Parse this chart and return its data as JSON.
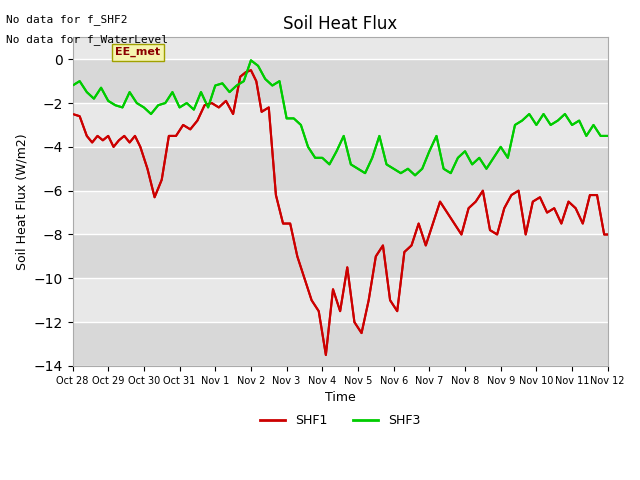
{
  "title": "Soil Heat Flux",
  "ylabel": "Soil Heat Flux (W/m2)",
  "xlabel": "Time",
  "top_text": [
    "No data for f_SHF2",
    "No data for f_WaterLevel"
  ],
  "annotation_box": "EE_met",
  "ylim": [
    -14,
    1
  ],
  "yticks": [
    0,
    -2,
    -4,
    -6,
    -8,
    -10,
    -12,
    -14
  ],
  "xlim": [
    0,
    15
  ],
  "xtick_labels": [
    "Oct 28",
    "Oct 29",
    "Oct 30",
    "Oct 31",
    "Nov 1",
    "Nov 2",
    "Nov 3",
    "Nov 4",
    "Nov 5",
    "Nov 6",
    "Nov 7",
    "Nov 8",
    "Nov 9",
    "Nov 10",
    "Nov 11",
    "Nov 12"
  ],
  "xtick_positions": [
    0,
    1,
    2,
    3,
    4,
    5,
    6,
    7,
    8,
    9,
    10,
    11,
    12,
    13,
    14,
    15
  ],
  "legend_labels": [
    "SHF1",
    "SHF3"
  ],
  "legend_colors": [
    "#cc0000",
    "#00cc00"
  ],
  "background_color": "#ffffff",
  "plot_bg_color": "#e8e8e8",
  "grid_color": "#ffffff",
  "shf1_x": [
    0,
    0.2,
    0.4,
    0.55,
    0.7,
    0.85,
    1.0,
    1.15,
    1.3,
    1.45,
    1.6,
    1.75,
    1.9,
    2.1,
    2.3,
    2.5,
    2.7,
    2.9,
    3.1,
    3.3,
    3.5,
    3.7,
    3.9,
    4.1,
    4.3,
    4.5,
    4.7,
    4.85,
    5.0,
    5.15,
    5.3,
    5.5,
    5.7,
    5.9,
    6.1,
    6.3,
    6.5,
    6.7,
    6.9,
    7.1,
    7.3,
    7.5,
    7.7,
    7.9,
    8.1,
    8.3,
    8.5,
    8.7,
    8.9,
    9.1,
    9.3,
    9.5,
    9.7,
    9.9,
    10.1,
    10.3,
    10.5,
    10.7,
    10.9,
    11.1,
    11.3,
    11.5,
    11.7,
    11.9,
    12.1,
    12.3,
    12.5,
    12.7,
    12.9,
    13.1,
    13.3,
    13.5,
    13.7,
    13.9,
    14.1,
    14.3,
    14.5,
    14.7,
    14.9,
    15.0
  ],
  "shf1_y": [
    -2.5,
    -2.6,
    -3.5,
    -3.8,
    -3.5,
    -3.7,
    -3.5,
    -4.0,
    -3.7,
    -3.5,
    -3.8,
    -3.5,
    -4.0,
    -5.0,
    -6.3,
    -5.5,
    -3.5,
    -3.5,
    -3.0,
    -3.2,
    -2.8,
    -2.1,
    -2.0,
    -2.2,
    -1.9,
    -2.5,
    -0.8,
    -0.6,
    -0.5,
    -1.0,
    -2.4,
    -2.2,
    -6.2,
    -7.5,
    -7.5,
    -9.0,
    -10.0,
    -11.0,
    -11.5,
    -13.5,
    -10.5,
    -11.5,
    -9.5,
    -12.0,
    -12.5,
    -11.0,
    -9.0,
    -8.5,
    -11.0,
    -11.5,
    -8.8,
    -8.5,
    -7.5,
    -8.5,
    -7.5,
    -6.5,
    -7.0,
    -7.5,
    -8.0,
    -6.8,
    -6.5,
    -6.0,
    -7.8,
    -8.0,
    -6.8,
    -6.2,
    -6.0,
    -8.0,
    -6.5,
    -6.3,
    -7.0,
    -6.8,
    -7.5,
    -6.5,
    -6.8,
    -7.5,
    -6.2,
    -6.2,
    -8.0,
    -8.0
  ],
  "shf3_x": [
    0,
    0.2,
    0.4,
    0.6,
    0.8,
    1.0,
    1.2,
    1.4,
    1.6,
    1.8,
    2.0,
    2.2,
    2.4,
    2.6,
    2.8,
    3.0,
    3.2,
    3.4,
    3.6,
    3.8,
    4.0,
    4.2,
    4.4,
    4.6,
    4.8,
    5.0,
    5.2,
    5.4,
    5.6,
    5.8,
    6.0,
    6.2,
    6.4,
    6.6,
    6.8,
    7.0,
    7.2,
    7.4,
    7.6,
    7.8,
    8.0,
    8.2,
    8.4,
    8.6,
    8.8,
    9.0,
    9.2,
    9.4,
    9.6,
    9.8,
    10.0,
    10.2,
    10.4,
    10.6,
    10.8,
    11.0,
    11.2,
    11.4,
    11.6,
    11.8,
    12.0,
    12.2,
    12.4,
    12.6,
    12.8,
    13.0,
    13.2,
    13.4,
    13.6,
    13.8,
    14.0,
    14.2,
    14.4,
    14.6,
    14.8,
    15.0
  ],
  "shf3_y": [
    -1.2,
    -1.0,
    -1.5,
    -1.8,
    -1.3,
    -1.9,
    -2.1,
    -2.2,
    -1.5,
    -2.0,
    -2.2,
    -2.5,
    -2.1,
    -2.0,
    -1.5,
    -2.2,
    -2.0,
    -2.3,
    -1.5,
    -2.2,
    -1.2,
    -1.1,
    -1.5,
    -1.2,
    -1.0,
    -0.05,
    -0.3,
    -0.9,
    -1.2,
    -1.0,
    -2.7,
    -2.7,
    -3.0,
    -4.0,
    -4.5,
    -4.5,
    -4.8,
    -4.2,
    -3.5,
    -4.8,
    -5.0,
    -5.2,
    -4.5,
    -3.5,
    -4.8,
    -5.0,
    -5.2,
    -5.0,
    -5.3,
    -5.0,
    -4.2,
    -3.5,
    -5.0,
    -5.2,
    -4.5,
    -4.2,
    -4.8,
    -4.5,
    -5.0,
    -4.5,
    -4.0,
    -4.5,
    -3.0,
    -2.8,
    -2.5,
    -3.0,
    -2.5,
    -3.0,
    -2.8,
    -2.5,
    -3.0,
    -2.8,
    -3.5,
    -3.0,
    -3.5,
    -3.5
  ]
}
